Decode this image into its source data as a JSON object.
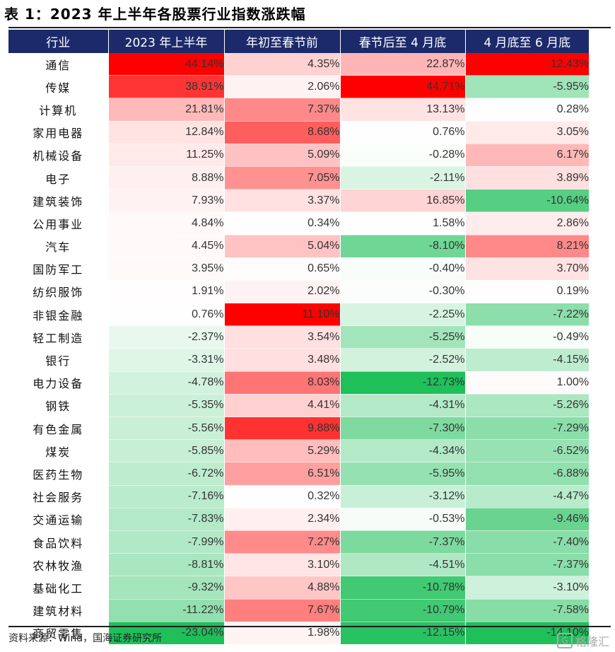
{
  "title": "表 1：2023 年上半年各股票行业指数涨跌幅",
  "columns": [
    "行业",
    "2023 年上半年",
    "年初至春节前",
    "春节后至 4 月底",
    "4 月底至 6 月底"
  ],
  "rows": [
    {
      "name": "通信",
      "values": [
        "44.14%",
        "4.35%",
        "22.87%",
        "12.43%"
      ]
    },
    {
      "name": "传媒",
      "values": [
        "38.91%",
        "2.06%",
        "44.71%",
        "-5.95%"
      ]
    },
    {
      "name": "计算机",
      "values": [
        "21.81%",
        "7.37%",
        "13.13%",
        "0.28%"
      ]
    },
    {
      "name": "家用电器",
      "values": [
        "12.84%",
        "8.68%",
        "0.76%",
        "3.05%"
      ]
    },
    {
      "name": "机械设备",
      "values": [
        "11.25%",
        "5.09%",
        "-0.28%",
        "6.17%"
      ]
    },
    {
      "name": "电子",
      "values": [
        "8.88%",
        "7.05%",
        "-2.11%",
        "3.89%"
      ]
    },
    {
      "name": "建筑装饰",
      "values": [
        "7.93%",
        "3.37%",
        "16.85%",
        "-10.64%"
      ]
    },
    {
      "name": "公用事业",
      "values": [
        "4.84%",
        "0.34%",
        "1.58%",
        "2.86%"
      ]
    },
    {
      "name": "汽车",
      "values": [
        "4.45%",
        "5.04%",
        "-8.10%",
        "8.21%"
      ]
    },
    {
      "name": "国防军工",
      "values": [
        "3.95%",
        "0.65%",
        "-0.40%",
        "3.70%"
      ]
    },
    {
      "name": "纺织服饰",
      "values": [
        "1.91%",
        "2.02%",
        "-0.30%",
        "0.19%"
      ]
    },
    {
      "name": "非银金融",
      "values": [
        "0.76%",
        "11.10%",
        "-2.25%",
        "-7.22%"
      ]
    },
    {
      "name": "轻工制造",
      "values": [
        "-2.37%",
        "3.54%",
        "-5.25%",
        "-0.49%"
      ]
    },
    {
      "name": "银行",
      "values": [
        "-3.31%",
        "3.48%",
        "-2.52%",
        "-4.15%"
      ]
    },
    {
      "name": "电力设备",
      "values": [
        "-4.78%",
        "8.03%",
        "-12.73%",
        "1.00%"
      ]
    },
    {
      "name": "钢铁",
      "values": [
        "-5.35%",
        "4.41%",
        "-4.31%",
        "-5.26%"
      ]
    },
    {
      "name": "有色金属",
      "values": [
        "-5.56%",
        "9.88%",
        "-7.30%",
        "-7.29%"
      ]
    },
    {
      "name": "煤炭",
      "values": [
        "-5.85%",
        "5.29%",
        "-4.34%",
        "-6.52%"
      ]
    },
    {
      "name": "医药生物",
      "values": [
        "-6.72%",
        "6.51%",
        "-5.95%",
        "-6.88%"
      ]
    },
    {
      "name": "社会服务",
      "values": [
        "-7.16%",
        "0.32%",
        "-3.12%",
        "-4.47%"
      ]
    },
    {
      "name": "交通运输",
      "values": [
        "-7.83%",
        "2.34%",
        "-0.53%",
        "-9.46%"
      ]
    },
    {
      "name": "食品饮料",
      "values": [
        "-7.99%",
        "7.27%",
        "-7.37%",
        "-7.40%"
      ]
    },
    {
      "name": "农林牧渔",
      "values": [
        "-8.81%",
        "3.10%",
        "-4.51%",
        "-7.37%"
      ]
    },
    {
      "name": "基础化工",
      "values": [
        "-9.32%",
        "4.88%",
        "-10.78%",
        "-3.10%"
      ]
    },
    {
      "name": "建筑材料",
      "values": [
        "-11.22%",
        "7.67%",
        "-10.79%",
        "-7.58%"
      ]
    },
    {
      "name": "商贸零售",
      "values": [
        "-23.04%",
        "1.98%",
        "-12.15%",
        "-14.10%"
      ]
    }
  ],
  "colors": {
    "header_bg": "#1c2a6b",
    "positive_max": "#ff0000",
    "negative_max": "#1fbf5a",
    "neutral": "#ffffff"
  },
  "source": "资料来源：Wind，国海证券研究所",
  "watermark": "格隆汇"
}
